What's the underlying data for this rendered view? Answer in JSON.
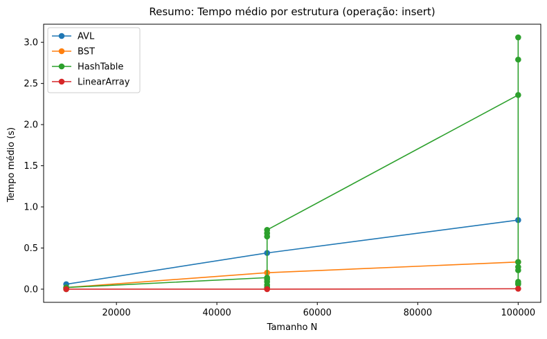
{
  "chart_data": {
    "type": "line",
    "title": "Resumo: Tempo médio por estrutura (operação: insert)",
    "xlabel": "Tamanho N",
    "ylabel": "Tempo médio (s)",
    "xlim": [
      5500,
      104500
    ],
    "ylim": [
      -0.16,
      3.22
    ],
    "xticks": [
      20000,
      40000,
      60000,
      80000,
      100000
    ],
    "yticks": [
      0.0,
      0.5,
      1.0,
      1.5,
      2.0,
      2.5,
      3.0
    ],
    "xtick_labels": [
      "20000",
      "40000",
      "60000",
      "80000",
      "100000"
    ],
    "ytick_labels": [
      "0.0",
      "0.5",
      "1.0",
      "1.5",
      "2.0",
      "2.5",
      "3.0"
    ],
    "grid": false,
    "legend_position": "top-left",
    "series": [
      {
        "name": "AVL",
        "color": "#1f77b4",
        "x": [
          10000,
          50000,
          100000
        ],
        "y": [
          0.06,
          0.44,
          0.84
        ]
      },
      {
        "name": "BST",
        "color": "#ff7f0e",
        "x": [
          10000,
          50000,
          100000
        ],
        "y": [
          0.02,
          0.2,
          0.33
        ]
      },
      {
        "name": "HashTable",
        "color": "#2ca02c",
        "x": [
          10000,
          10000,
          10000,
          50000,
          50000,
          50000,
          50000,
          50000,
          50000,
          50000,
          50000,
          100000,
          100000,
          100000,
          100000,
          100000,
          100000,
          100000,
          100000,
          100000
        ],
        "y": [
          0.0,
          0.01,
          0.02,
          0.14,
          0.02,
          0.05,
          0.09,
          0.12,
          0.64,
          0.68,
          0.72,
          2.36,
          2.79,
          3.06,
          0.33,
          0.27,
          0.23,
          0.09,
          0.07,
          0.06
        ]
      },
      {
        "name": "LinearArray",
        "color": "#d62728",
        "x": [
          10000,
          50000,
          100000
        ],
        "y": [
          0.0,
          0.0,
          0.005
        ]
      }
    ]
  }
}
